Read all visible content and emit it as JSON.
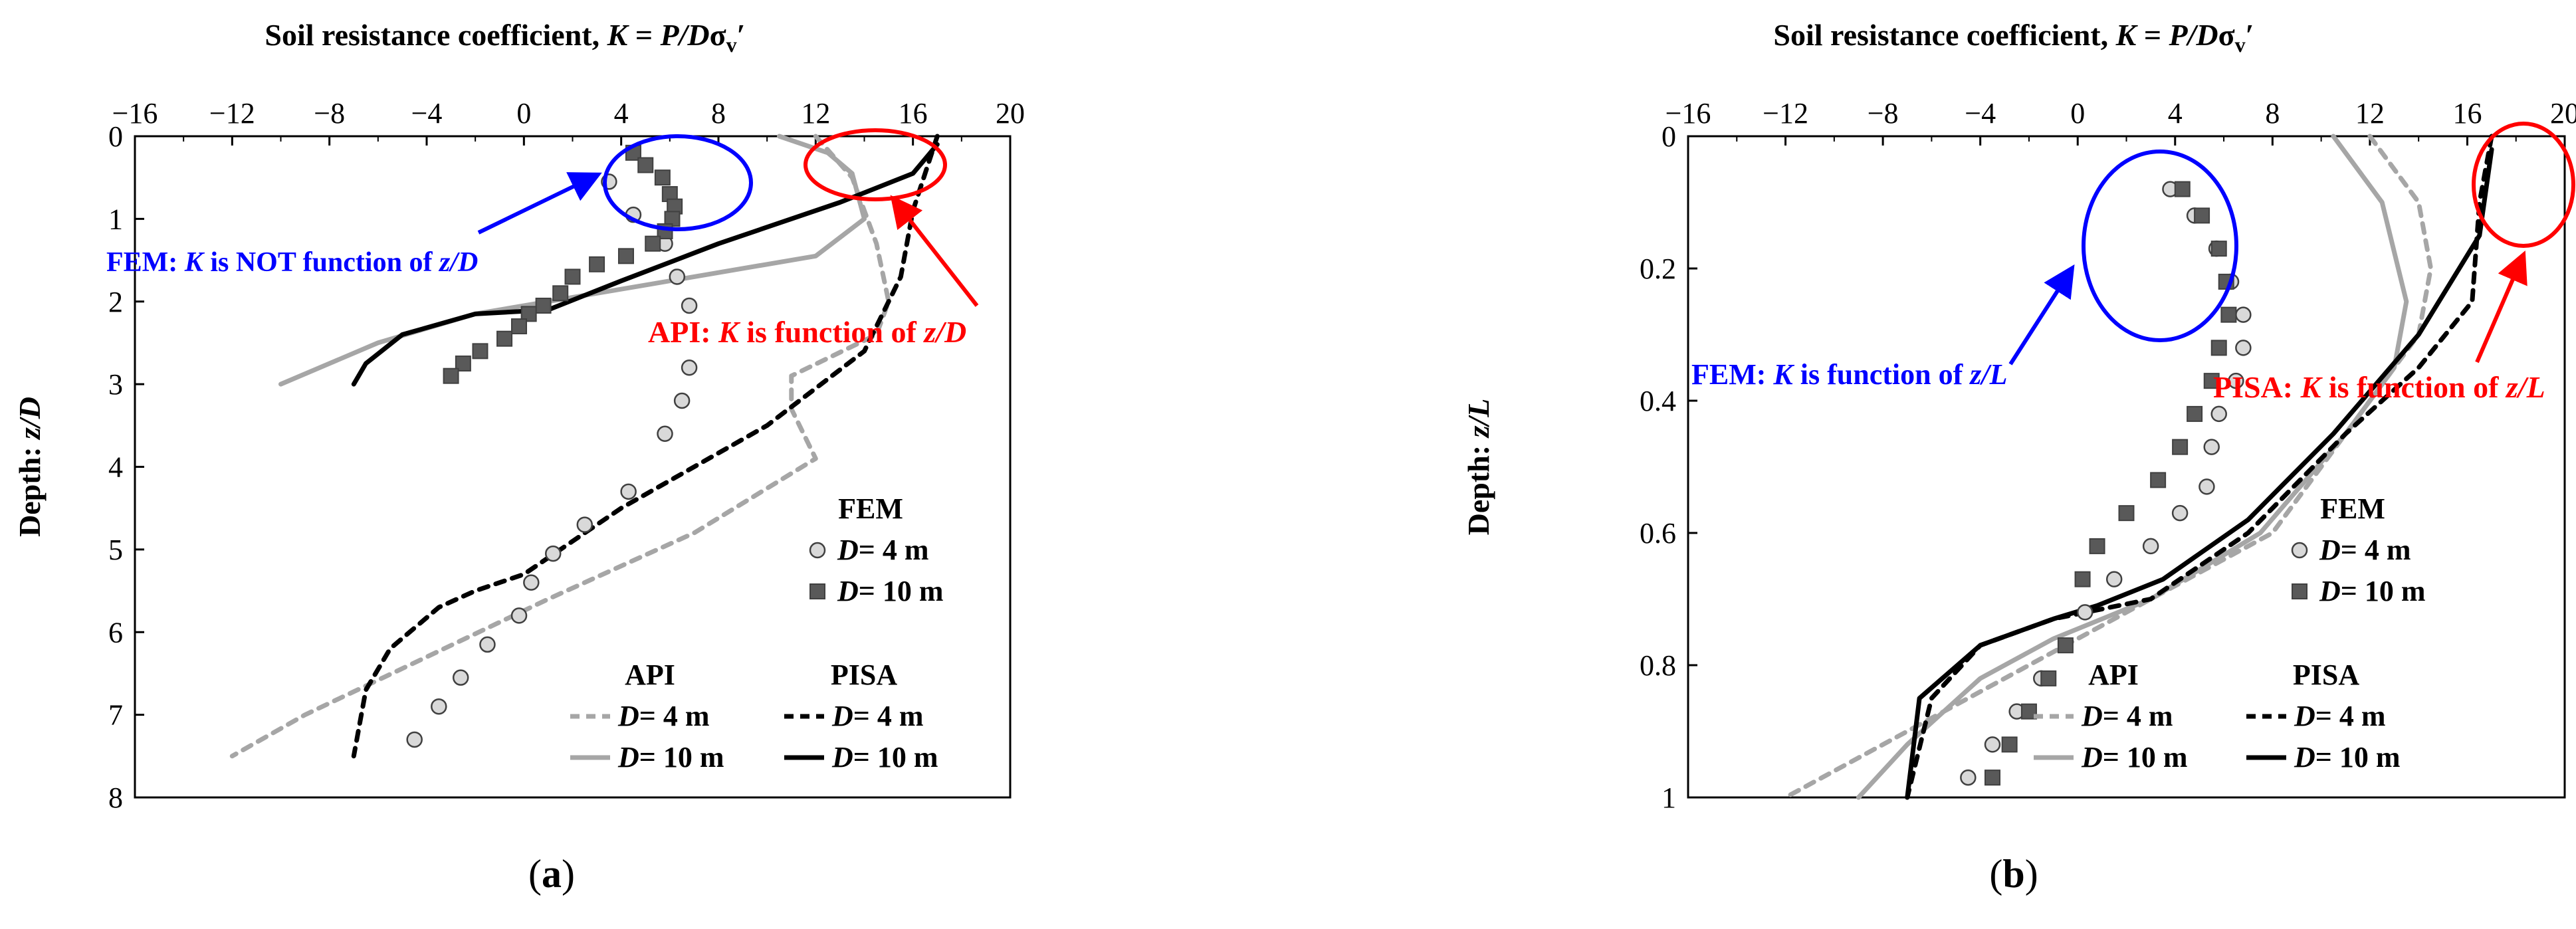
{
  "chart_data": [
    {
      "panel_label": "(a)",
      "type": "line+scatter",
      "xlabel": "Soil resistance coefficient, K = P/Dσᵥ′",
      "ylabel": "Depth: z/D",
      "xlim": [
        -16,
        20
      ],
      "ylim": [
        0,
        8
      ],
      "y_inverted": true,
      "xticks": [
        "−16",
        "−12",
        "−8",
        "−4",
        "0",
        "4",
        "8",
        "12",
        "16",
        "20"
      ],
      "yticks": [
        "0",
        "1",
        "2",
        "3",
        "4",
        "5",
        "6",
        "7",
        "8"
      ],
      "grid": false,
      "legend": {
        "fem_title": "FEM",
        "fem_entries": [
          "D= 4 m",
          "D= 10 m"
        ],
        "api_title": "API",
        "pisa_title": "PISA",
        "api_entries": [
          "D= 4 m",
          "D= 10 m"
        ],
        "pisa_entries": [
          "D= 4 m",
          "D= 10 m"
        ]
      },
      "annotations": [
        {
          "text_plain": "FEM: ",
          "text_italic": "K",
          "text_rest": " is NOT function of ",
          "text_italic2": "z/D",
          "color": "#0000ff"
        },
        {
          "text_plain": "API: ",
          "text_italic": "K",
          "text_rest": " is function of ",
          "text_italic2": "z/D",
          "color": "#ff0000"
        }
      ],
      "series": [
        {
          "name": "API D= 4 m",
          "style": "dashed",
          "color": "#a6a6a6",
          "points": [
            [
              12,
              0
            ],
            [
              13.5,
              0.5
            ],
            [
              14.5,
              1.3
            ],
            [
              15,
              2
            ],
            [
              14.5,
              2.4
            ],
            [
              11,
              2.9
            ],
            [
              11,
              3.3
            ],
            [
              12,
              3.9
            ],
            [
              7,
              4.8
            ],
            [
              1,
              5.6
            ],
            [
              -4,
              6.3
            ],
            [
              -9,
              7.0
            ],
            [
              -12,
              7.5
            ]
          ]
        },
        {
          "name": "API D= 10 m",
          "style": "solid",
          "color": "#a6a6a6",
          "points": [
            [
              10.5,
              0
            ],
            [
              12.5,
              0.2
            ],
            [
              13.5,
              0.45
            ],
            [
              14,
              1.0
            ],
            [
              12,
              1.45
            ],
            [
              5,
              1.8
            ],
            [
              -2,
              2.15
            ],
            [
              -6,
              2.5
            ],
            [
              -10,
              3.0
            ]
          ]
        },
        {
          "name": "PISA D= 4 m",
          "style": "dashed",
          "color": "#000000",
          "points": [
            [
              17,
              0
            ],
            [
              16,
              0.9
            ],
            [
              15.5,
              1.7
            ],
            [
              14,
              2.6
            ],
            [
              10,
              3.5
            ],
            [
              4,
              4.5
            ],
            [
              0,
              5.3
            ],
            [
              -2,
              5.5
            ],
            [
              -3.5,
              5.7
            ],
            [
              -5.5,
              6.2
            ],
            [
              -6.5,
              6.7
            ],
            [
              -7,
              7.5
            ]
          ]
        },
        {
          "name": "PISA D= 10 m",
          "style": "solid",
          "color": "#000000",
          "points": [
            [
              17,
              0.1
            ],
            [
              16,
              0.45
            ],
            [
              13,
              0.8
            ],
            [
              8,
              1.3
            ],
            [
              4,
              1.75
            ],
            [
              1,
              2.1
            ],
            [
              -2,
              2.15
            ],
            [
              -5,
              2.4
            ],
            [
              -6.5,
              2.75
            ],
            [
              -7,
              3.0
            ]
          ]
        },
        {
          "name": "FEM D= 4 m",
          "marker": "circle",
          "points": [
            [
              3.5,
              0.55
            ],
            [
              4.5,
              0.95
            ],
            [
              5.8,
              1.3
            ],
            [
              6.3,
              1.7
            ],
            [
              6.8,
              2.05
            ],
            [
              6.8,
              2.8
            ],
            [
              6.5,
              3.2
            ],
            [
              5.8,
              3.6
            ],
            [
              4.3,
              4.3
            ],
            [
              2.5,
              4.7
            ],
            [
              1.2,
              5.05
            ],
            [
              0.3,
              5.4
            ],
            [
              -0.2,
              5.8
            ],
            [
              -1.5,
              6.15
            ],
            [
              -2.6,
              6.55
            ],
            [
              -3.5,
              6.9
            ],
            [
              -4.5,
              7.3
            ]
          ]
        },
        {
          "name": "FEM D= 10 m",
          "marker": "square",
          "points": [
            [
              4.5,
              0.2
            ],
            [
              5,
              0.35
            ],
            [
              5.7,
              0.5
            ],
            [
              6,
              0.7
            ],
            [
              6.2,
              0.85
            ],
            [
              6.1,
              1.0
            ],
            [
              5.8,
              1.15
            ],
            [
              5.3,
              1.3
            ],
            [
              4.2,
              1.45
            ],
            [
              3,
              1.55
            ],
            [
              2,
              1.7
            ],
            [
              1.5,
              1.9
            ],
            [
              0.8,
              2.05
            ],
            [
              0.2,
              2.15
            ],
            [
              -0.2,
              2.3
            ],
            [
              -0.8,
              2.45
            ],
            [
              -1.8,
              2.6
            ],
            [
              -2.5,
              2.75
            ],
            [
              -3,
              2.9
            ]
          ]
        }
      ]
    },
    {
      "panel_label": "(b)",
      "type": "line+scatter",
      "xlabel": "Soil resistance coefficient, K = P/Dσᵥ′",
      "ylabel": "Depth: z/L",
      "xlim": [
        -16,
        20
      ],
      "ylim": [
        0,
        1
      ],
      "y_inverted": true,
      "xticks": [
        "−16",
        "−12",
        "−8",
        "−4",
        "0",
        "4",
        "8",
        "12",
        "16",
        "20"
      ],
      "yticks": [
        "0",
        "0.2",
        "0.4",
        "0.6",
        "0.8",
        "1"
      ],
      "grid": false,
      "legend": {
        "fem_title": "FEM",
        "fem_entries": [
          "D= 4 m",
          "D= 10 m"
        ],
        "api_title": "API",
        "pisa_title": "PISA",
        "api_entries": [
          "D= 4 m",
          "D= 10 m"
        ],
        "pisa_entries": [
          "D= 4 m",
          "D= 10 m"
        ]
      },
      "annotations": [
        {
          "text_plain": "FEM: ",
          "text_italic": "K",
          "text_rest": " is function of ",
          "text_italic2": "z/L",
          "color": "#0000ff"
        },
        {
          "text_plain": "PISA: ",
          "text_italic": "K",
          "text_rest": " is function of ",
          "text_italic2": "z/L",
          "color": "#ff0000"
        }
      ],
      "series": [
        {
          "name": "API D= 4 m",
          "style": "dashed",
          "color": "#a6a6a6",
          "points": [
            [
              12,
              0
            ],
            [
              14,
              0.1
            ],
            [
              14.5,
              0.2
            ],
            [
              14,
              0.3
            ],
            [
              12,
              0.4
            ],
            [
              10,
              0.5
            ],
            [
              8,
              0.6
            ],
            [
              3,
              0.7
            ],
            [
              -2,
              0.8
            ],
            [
              -7,
              0.9
            ],
            [
              -12,
              1.0
            ]
          ]
        },
        {
          "name": "API D= 10 m",
          "style": "solid",
          "color": "#a6a6a6",
          "points": [
            [
              10.5,
              0
            ],
            [
              12.5,
              0.1
            ],
            [
              13.5,
              0.25
            ],
            [
              13,
              0.35
            ],
            [
              11,
              0.45
            ],
            [
              7.5,
              0.6
            ],
            [
              3,
              0.7
            ],
            [
              -1,
              0.76
            ],
            [
              -4,
              0.82
            ],
            [
              -7,
              0.92
            ],
            [
              -9,
              1.0
            ]
          ]
        },
        {
          "name": "PISA D= 4 m",
          "style": "dashed",
          "color": "#000000",
          "points": [
            [
              17,
              0
            ],
            [
              16.5,
              0.1
            ],
            [
              16.2,
              0.25
            ],
            [
              14,
              0.35
            ],
            [
              11,
              0.45
            ],
            [
              7,
              0.6
            ],
            [
              3,
              0.7
            ],
            [
              -1,
              0.73
            ],
            [
              -4,
              0.77
            ],
            [
              -6,
              0.85
            ],
            [
              -7,
              1.0
            ]
          ]
        },
        {
          "name": "PISA D= 10 m",
          "style": "solid",
          "color": "#000000",
          "points": [
            [
              17,
              0.02
            ],
            [
              16.5,
              0.15
            ],
            [
              14,
              0.3
            ],
            [
              10.5,
              0.45
            ],
            [
              7,
              0.58
            ],
            [
              3.5,
              0.67
            ],
            [
              0.8,
              0.71
            ],
            [
              -1,
              0.73
            ],
            [
              -4,
              0.77
            ],
            [
              -6.5,
              0.85
            ],
            [
              -7,
              1.0
            ]
          ]
        },
        {
          "name": "FEM D= 4 m",
          "marker": "circle",
          "points": [
            [
              3.8,
              0.08
            ],
            [
              4.8,
              0.12
            ],
            [
              5.7,
              0.17
            ],
            [
              6.3,
              0.22
            ],
            [
              6.8,
              0.27
            ],
            [
              6.8,
              0.32
            ],
            [
              6.5,
              0.37
            ],
            [
              5.8,
              0.42
            ],
            [
              5.5,
              0.47
            ],
            [
              5.3,
              0.53
            ],
            [
              4.2,
              0.57
            ],
            [
              3,
              0.62
            ],
            [
              1.5,
              0.67
            ],
            [
              0.3,
              0.72
            ],
            [
              -1.5,
              0.82
            ],
            [
              -2.5,
              0.87
            ],
            [
              -3.5,
              0.92
            ],
            [
              -4.5,
              0.97
            ]
          ]
        },
        {
          "name": "FEM D= 10 m",
          "marker": "square",
          "points": [
            [
              4.3,
              0.08
            ],
            [
              5.1,
              0.12
            ],
            [
              5.8,
              0.17
            ],
            [
              6.1,
              0.22
            ],
            [
              6.2,
              0.27
            ],
            [
              5.8,
              0.32
            ],
            [
              5.5,
              0.37
            ],
            [
              4.8,
              0.42
            ],
            [
              4.2,
              0.47
            ],
            [
              3.3,
              0.52
            ],
            [
              2,
              0.57
            ],
            [
              0.8,
              0.62
            ],
            [
              0.2,
              0.67
            ],
            [
              -0.5,
              0.77
            ],
            [
              -1.2,
              0.82
            ],
            [
              -2,
              0.87
            ],
            [
              -2.8,
              0.92
            ],
            [
              -3.5,
              0.97
            ]
          ]
        }
      ]
    }
  ]
}
